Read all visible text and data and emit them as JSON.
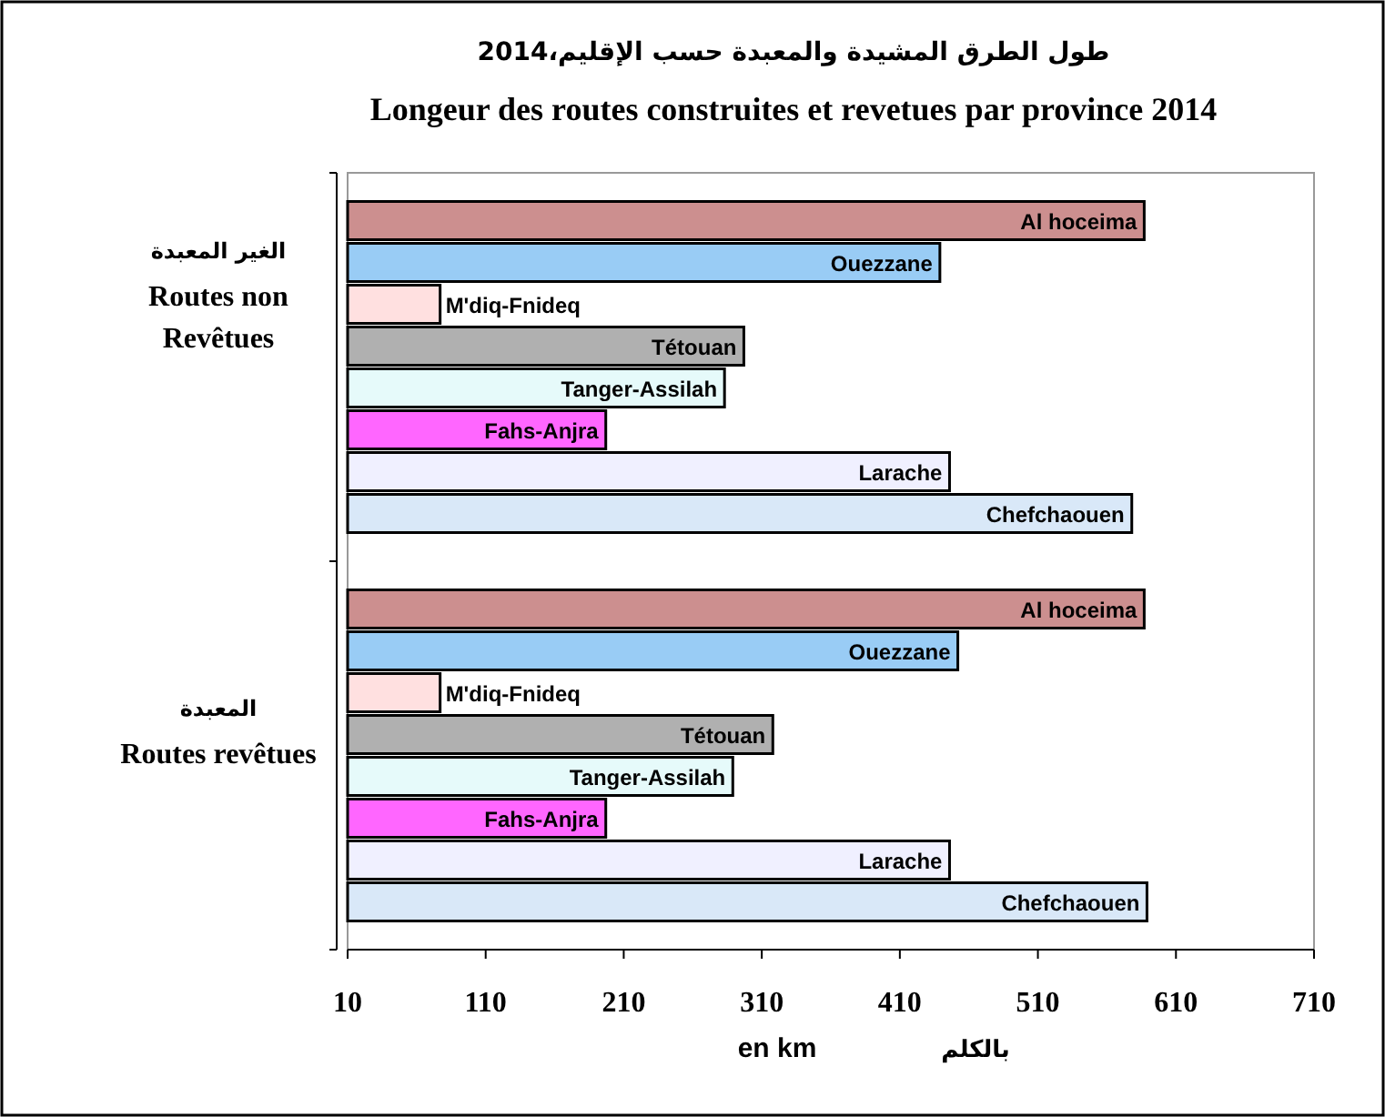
{
  "chart_data": {
    "type": "bar",
    "orientation": "horizontal",
    "title": "طول الطرق المشيدة والمعبدة حسب الإقليم،2014",
    "subtitle": "Longeur des routes construites et revetues par province 2014",
    "categories": [
      "Routes non Revêtues",
      "Routes revêtues"
    ],
    "xlabel": "en km",
    "annotations": [
      "الغير المعبدة",
      "المعبدة",
      "بالكلم"
    ],
    "xlim": [
      10,
      710
    ],
    "xticks": [
      10,
      110,
      210,
      310,
      410,
      510,
      610,
      710
    ],
    "series": [
      {
        "name": "Al hoceima",
        "color": "#cc8f8f",
        "values": [
          587,
          587
        ]
      },
      {
        "name": "Ouezzane",
        "color": "#99ccf5",
        "values": [
          439,
          452
        ]
      },
      {
        "name": "M'diq-Fnideq",
        "color": "#ffe0e0",
        "values": [
          77,
          77
        ]
      },
      {
        "name": "Tétouan",
        "color": "#b0b0b0",
        "values": [
          297,
          318
        ]
      },
      {
        "name": "Tanger-Assilah",
        "color": "#e6fafa",
        "values": [
          283,
          289
        ]
      },
      {
        "name": "Fahs-Anjra",
        "color": "#ff66ff",
        "values": [
          197,
          197
        ]
      },
      {
        "name": "Larache",
        "color": "#f0f0ff",
        "values": [
          446,
          446
        ]
      },
      {
        "name": "Chefchaouen",
        "color": "#d9e8f8",
        "values": [
          578,
          589
        ]
      }
    ]
  }
}
